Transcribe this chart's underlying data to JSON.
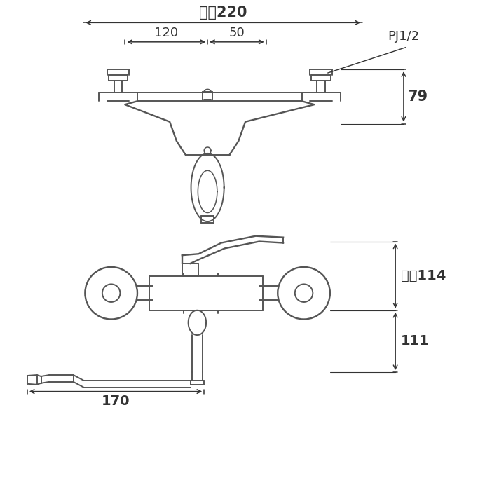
{
  "bg_color": "#ffffff",
  "line_color": "#555555",
  "dim_color": "#333333",
  "fig_width": 7.12,
  "fig_height": 7.12,
  "top_diagram": {
    "label_220": "最大220",
    "label_120": "120",
    "label_50": "50",
    "label_79": "79",
    "label_pj": "PJ1/2"
  },
  "bottom_diagram": {
    "label_114": "最大114",
    "label_111": "111",
    "label_170": "170"
  }
}
